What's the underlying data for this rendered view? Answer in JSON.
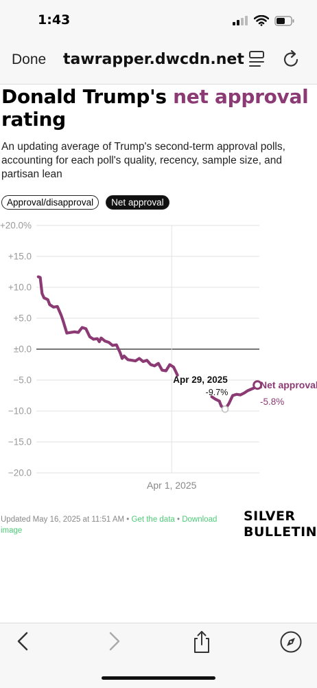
{
  "status_bar": {
    "time": "1:43"
  },
  "browser": {
    "done_label": "Done",
    "url": "tawrapper.dwcdn.net"
  },
  "header": {
    "title_part1": "Donald Trump's ",
    "title_highlight": "net approval",
    "title_part2": " rating",
    "subtitle": "An updating average of Trump's second-term approval polls, accounting for each poll's quality, recency, sample size, and partisan lean"
  },
  "toggles": [
    {
      "label": "Approval/disapproval",
      "active": false
    },
    {
      "label": "Net approval",
      "active": true
    }
  ],
  "chart_data": {
    "type": "line",
    "title": "",
    "xlabel": "",
    "ylabel": "",
    "x_tick_labels": [
      "Apr 1, 2025"
    ],
    "y_ticks": [
      20,
      15,
      10,
      5,
      0,
      -5,
      -10,
      -15,
      -20
    ],
    "y_tick_labels": [
      "+20.0%",
      "+15.0",
      "+10.0",
      "+5.0",
      "±0.0",
      "−5.0",
      "−10.0",
      "−15.0",
      "−20.0"
    ],
    "ylim": [
      -20,
      20
    ],
    "grid": true,
    "series": [
      {
        "name": "Net approval",
        "color": "#8b3a74",
        "end_label": "-5.8%",
        "points": [
          [
            "2025-01-21",
            11.7
          ],
          [
            "2025-01-22",
            11.6
          ],
          [
            "2025-01-23",
            9.0
          ],
          [
            "2025-01-24",
            8.3
          ],
          [
            "2025-01-26",
            8.0
          ],
          [
            "2025-01-27",
            7.2
          ],
          [
            "2025-01-29",
            6.8
          ],
          [
            "2025-01-31",
            6.9
          ],
          [
            "2025-02-02",
            5.5
          ],
          [
            "2025-02-03",
            4.6
          ],
          [
            "2025-02-05",
            2.6
          ],
          [
            "2025-02-07",
            2.7
          ],
          [
            "2025-02-09",
            2.8
          ],
          [
            "2025-02-11",
            2.7
          ],
          [
            "2025-02-13",
            3.5
          ],
          [
            "2025-02-15",
            3.3
          ],
          [
            "2025-02-17",
            2.0
          ],
          [
            "2025-02-19",
            1.6
          ],
          [
            "2025-02-21",
            1.7
          ],
          [
            "2025-02-22",
            1.2
          ],
          [
            "2025-02-23",
            1.8
          ],
          [
            "2025-02-25",
            1.3
          ],
          [
            "2025-02-27",
            1.1
          ],
          [
            "2025-03-01",
            0.6
          ],
          [
            "2025-03-03",
            0.7
          ],
          [
            "2025-03-05",
            -0.6
          ],
          [
            "2025-03-06",
            -1.5
          ],
          [
            "2025-03-07",
            -1.1
          ],
          [
            "2025-03-09",
            -1.7
          ],
          [
            "2025-03-11",
            -1.8
          ],
          [
            "2025-03-13",
            -1.9
          ],
          [
            "2025-03-15",
            -1.5
          ],
          [
            "2025-03-17",
            -2.0
          ],
          [
            "2025-03-19",
            -1.8
          ],
          [
            "2025-03-21",
            -2.5
          ],
          [
            "2025-03-23",
            -2.7
          ],
          [
            "2025-03-25",
            -2.3
          ],
          [
            "2025-03-27",
            -3.4
          ],
          [
            "2025-03-29",
            -3.5
          ],
          [
            "2025-03-31",
            -2.5
          ],
          [
            "2025-04-02",
            -2.9
          ],
          [
            "2025-04-04",
            -4.2
          ],
          [
            "2025-04-06",
            -5.0
          ],
          [
            "2025-04-08",
            -6.0
          ],
          [
            "2025-04-10",
            -6.3
          ],
          [
            "2025-04-12",
            -6.0
          ],
          [
            "2025-04-14",
            -6.4
          ],
          [
            "2025-04-16",
            -6.8
          ],
          [
            "2025-04-18",
            -7.0
          ],
          [
            "2025-04-20",
            -7.5
          ],
          [
            "2025-04-22",
            -7.7
          ],
          [
            "2025-04-24",
            -8.1
          ],
          [
            "2025-04-26",
            -8.4
          ],
          [
            "2025-04-27",
            -9.2
          ],
          [
            "2025-04-29",
            -9.7
          ],
          [
            "2025-05-01",
            -8.8
          ],
          [
            "2025-05-03",
            -7.5
          ],
          [
            "2025-05-05",
            -7.3
          ],
          [
            "2025-05-07",
            -7.4
          ],
          [
            "2025-05-09",
            -7.1
          ],
          [
            "2025-05-11",
            -6.7
          ],
          [
            "2025-05-14",
            -6.3
          ],
          [
            "2025-05-16",
            -5.8
          ]
        ]
      }
    ],
    "gap_range": [
      "2025-04-04",
      "2025-04-22"
    ],
    "annotation": {
      "date": "2025-04-29",
      "label": "Apr 29, 2025",
      "value_label": "-9.7%"
    },
    "x_reference_line": "2025-04-01"
  },
  "footer": {
    "updated": "Updated May 16, 2025 at 11:51 AM",
    "sep": " • ",
    "get_data": "Get the data",
    "download": "Download image"
  },
  "brand": {
    "line1": "SILVER",
    "line2": "BULLETIN"
  }
}
